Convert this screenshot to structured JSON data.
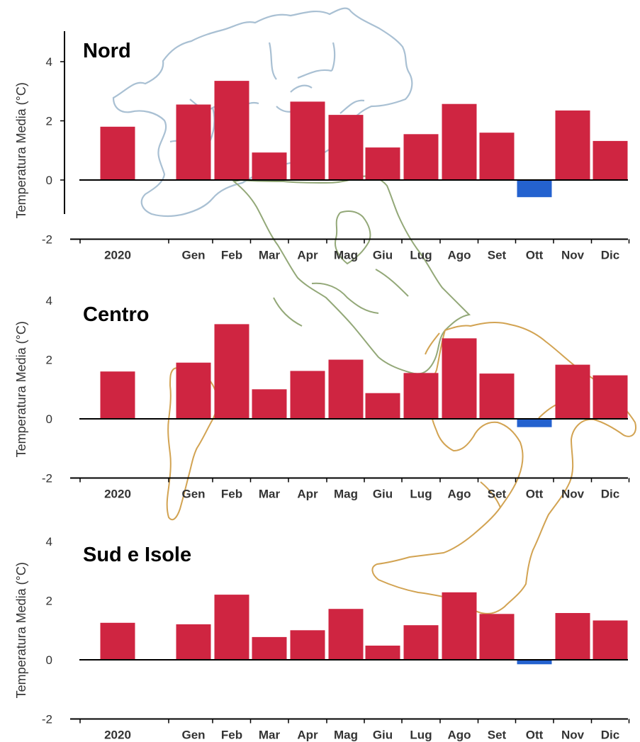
{
  "colors": {
    "positive": "#cf2541",
    "negative": "#2462cf",
    "axis": "#000000",
    "map_nord": "#a9c0d3",
    "map_centro": "#93a878",
    "map_sud": "#d2a352"
  },
  "chart_data": [
    {
      "type": "bar",
      "title": "Nord",
      "ylabel": "Temperatura Media (°C)",
      "ylim": [
        -2,
        4
      ],
      "yticks": [
        "-2",
        "0",
        "2",
        "4"
      ],
      "categories": [
        "2020",
        "Gen",
        "Feb",
        "Mar",
        "Apr",
        "Mag",
        "Giu",
        "Lug",
        "Ago",
        "Set",
        "Ott",
        "Nov",
        "Dic"
      ],
      "values": [
        1.8,
        2.55,
        3.35,
        0.93,
        2.65,
        2.2,
        1.1,
        1.55,
        2.57,
        1.6,
        -0.58,
        2.35,
        1.32
      ],
      "grid": false
    },
    {
      "type": "bar",
      "title": "Centro",
      "ylabel": "Temperatura Media (°C)",
      "ylim": [
        -2,
        4
      ],
      "yticks": [
        "-2",
        "0",
        "2",
        "4"
      ],
      "categories": [
        "2020",
        "Gen",
        "Feb",
        "Mar",
        "Apr",
        "Mag",
        "Giu",
        "Lug",
        "Ago",
        "Set",
        "Ott",
        "Nov",
        "Dic"
      ],
      "values": [
        1.6,
        1.9,
        3.2,
        1.0,
        1.62,
        2.0,
        0.87,
        1.55,
        2.72,
        1.53,
        -0.28,
        1.83,
        1.47
      ],
      "grid": false
    },
    {
      "type": "bar",
      "title": "Sud e Isole",
      "ylabel": "Temperatura Media (°C)",
      "ylim": [
        -2,
        4
      ],
      "yticks": [
        "-2",
        "0",
        "2",
        "4"
      ],
      "categories": [
        "2020",
        "Gen",
        "Feb",
        "Mar",
        "Apr",
        "Mag",
        "Giu",
        "Lug",
        "Ago",
        "Set",
        "Ott",
        "Nov",
        "Dic"
      ],
      "values": [
        1.25,
        1.2,
        2.2,
        0.77,
        1.0,
        1.72,
        0.48,
        1.17,
        2.28,
        1.55,
        -0.15,
        1.58,
        1.33
      ],
      "grid": false
    }
  ]
}
